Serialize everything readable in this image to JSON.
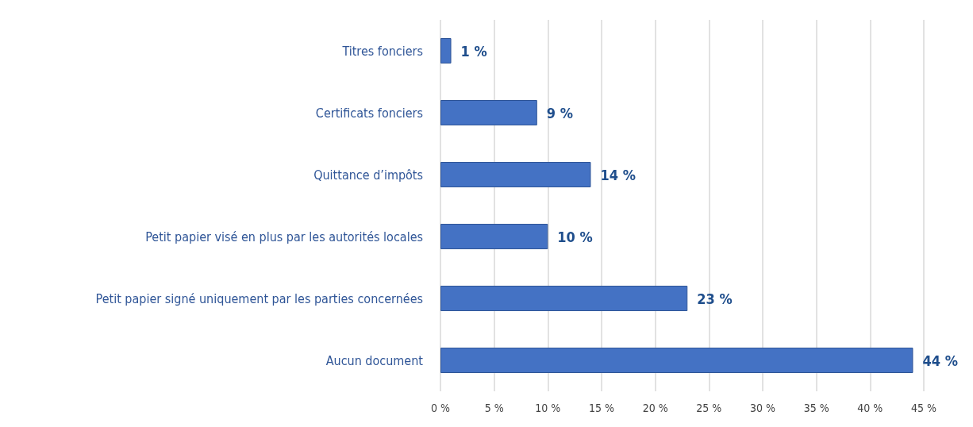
{
  "chart_data": {
    "type": "bar",
    "orientation": "horizontal",
    "categories": [
      "Titres fonciers",
      "Certificats fonciers",
      "Quittance d’impôts",
      "Petit papier visé en plus par les autorités locales",
      "Petit papier signé uniquement par les parties concernées",
      "Aucun document"
    ],
    "values": [
      1,
      9,
      14,
      10,
      23,
      44
    ],
    "value_labels": [
      "1 %",
      "9 %",
      "14 %",
      "10 %",
      "23 %",
      "44 %"
    ],
    "color": "#4472c4",
    "xlim": [
      0,
      45
    ],
    "xticks": [
      {
        "value": 0,
        "label": "0 %"
      },
      {
        "value": 5,
        "label": "5 %"
      },
      {
        "value": 10,
        "label": "10 %"
      },
      {
        "value": 15,
        "label": "15 %"
      },
      {
        "value": 20,
        "label": "20 %"
      },
      {
        "value": 25,
        "label": "25 %"
      },
      {
        "value": 30,
        "label": "30 %"
      },
      {
        "value": 35,
        "label": "35 %"
      },
      {
        "value": 40,
        "label": "40 %"
      },
      {
        "value": 45,
        "label": "45 %"
      }
    ],
    "grid": "x"
  }
}
